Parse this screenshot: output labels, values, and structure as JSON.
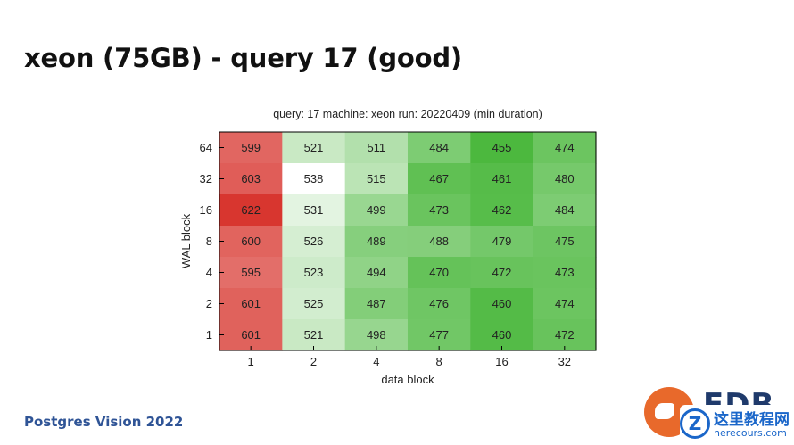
{
  "slide": {
    "title": "xeon (75GB) - query 17 (good)",
    "footer": "Postgres Vision 2022"
  },
  "logo": {
    "text": "EDB",
    "watermark_cn": "这里教程网",
    "watermark_url": "herecours.com"
  },
  "chart_data": {
    "type": "heatmap",
    "title": "query: 17  machine: xeon  run: 20220409  (min duration)",
    "xlabel": "data block",
    "ylabel": "WAL block",
    "x": [
      "1",
      "2",
      "4",
      "8",
      "16",
      "32"
    ],
    "y": [
      "64",
      "32",
      "16",
      "8",
      "4",
      "2",
      "1"
    ],
    "values": [
      [
        599,
        521,
        511,
        484,
        455,
        474
      ],
      [
        603,
        538,
        515,
        467,
        461,
        480
      ],
      [
        622,
        531,
        499,
        473,
        462,
        484
      ],
      [
        600,
        526,
        489,
        488,
        479,
        475
      ],
      [
        595,
        523,
        494,
        470,
        472,
        473
      ],
      [
        601,
        525,
        487,
        476,
        460,
        474
      ],
      [
        601,
        521,
        498,
        477,
        460,
        472
      ]
    ],
    "colors": {
      "low": "#4cb83e",
      "mid": "#ffffff",
      "high": "#d8362f"
    },
    "grid": false,
    "legend": "none"
  }
}
